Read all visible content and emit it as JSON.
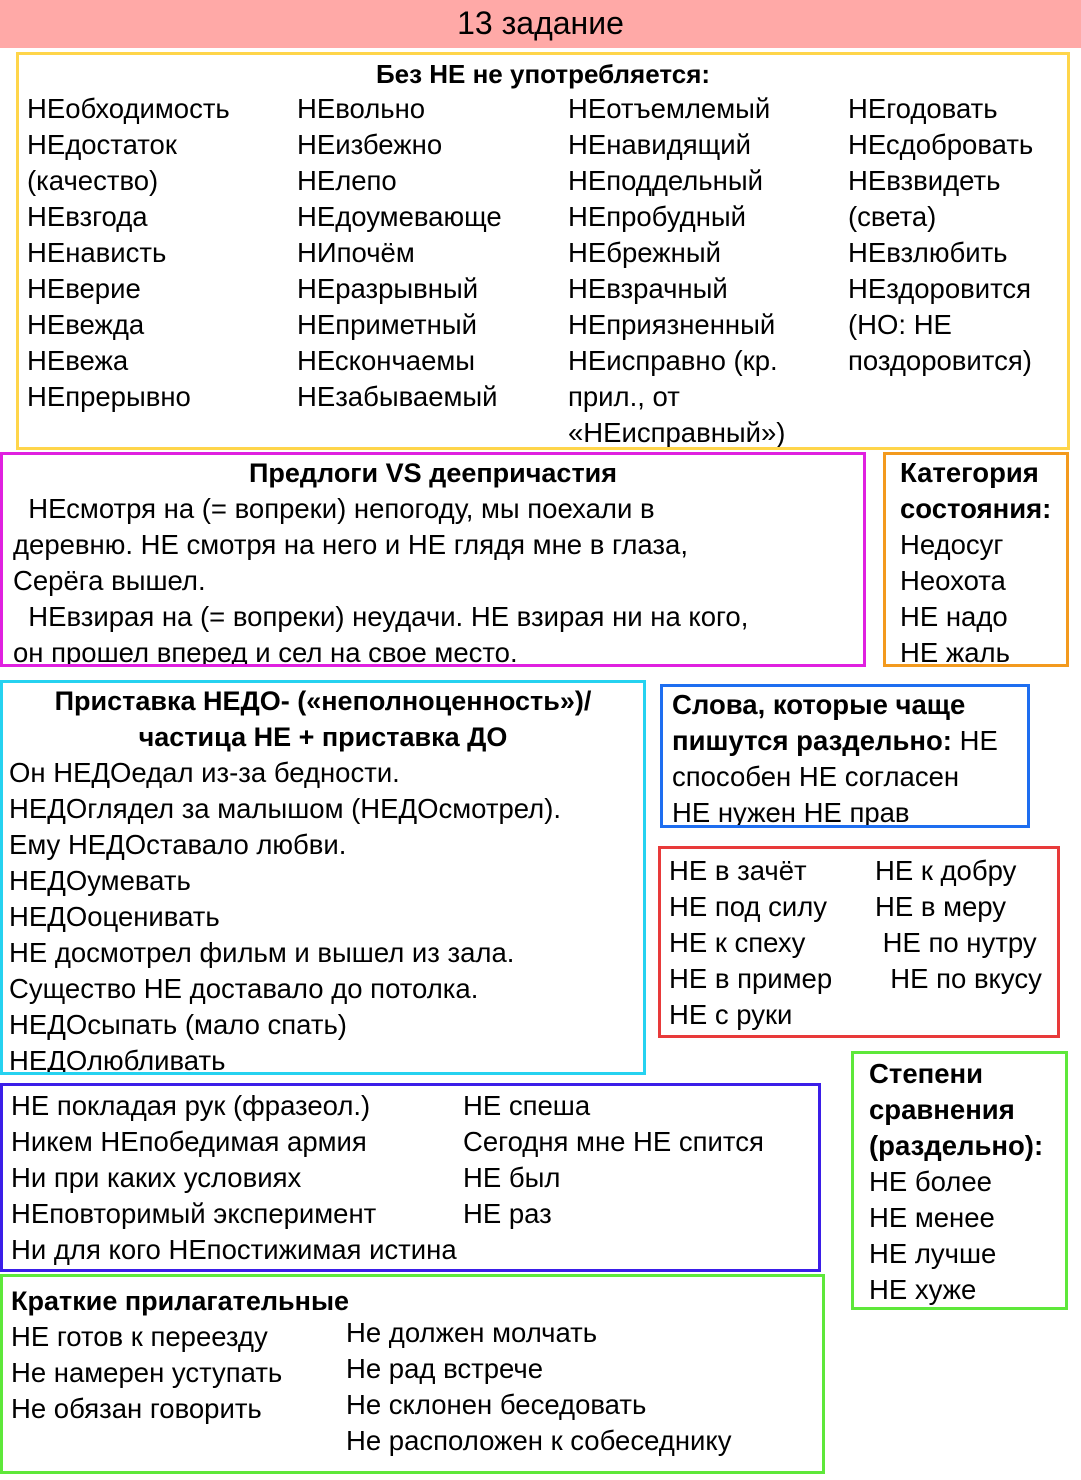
{
  "header": {
    "title": "13 задание",
    "bg": "#ffa9a7"
  },
  "box1": {
    "title": "Без НЕ не употребляется:",
    "col1": [
      "НЕобходимость",
      "НЕдостаток",
      "(качество)",
      "НЕвзгода",
      "НЕнависть",
      "НЕверие",
      "НЕвежда",
      "НЕвежа",
      "НЕпрерывно"
    ],
    "col2": [
      "НЕвольно",
      "НЕизбежно",
      "НЕлепо",
      "НЕдоумевающе",
      "НИпочём",
      "НЕразрывный",
      "НЕприметный",
      "НЕскончаемы",
      "НЕзабываемый"
    ],
    "col3": [
      "НЕотъемлемый",
      "НЕнавидящий",
      "НЕподдельный",
      "НЕпробудный",
      "НЕбрежный",
      "НЕвзрачный",
      "НЕприязненный",
      "НЕисправно (кр.",
      "прил., от",
      "«НЕисправный»)"
    ],
    "col4": [
      "НЕгодовать",
      "НЕсдобровать",
      "НЕвзвидеть",
      "(света)",
      "НЕвзлюбить",
      "НЕздоровится",
      "(НО: НЕ",
      "поздоровится)"
    ]
  },
  "box2": {
    "title": "Предлоги VS деепричастия",
    "lines": [
      "  НЕсмотря на (= вопреки) непогоду, мы поехали в",
      "деревню. НЕ смотря на него и НЕ глядя мне в глаза,",
      "Серёга вышел.",
      "  НЕвзирая на (= вопреки) неудачи. НЕ взирая ни на кого,",
      "он прошел вперед и сел на свое место."
    ]
  },
  "box3": {
    "title": [
      "Категория",
      "состояния:"
    ],
    "items": [
      "Недосуг",
      "Неохота",
      "НЕ надо",
      "НЕ жаль"
    ]
  },
  "box4": {
    "title": [
      "Приставка НЕДО- («неполноценность»)/",
      "частица НЕ + приставка ДО"
    ],
    "lines": [
      "Он НЕДОедал из-за бедности.",
      "НЕДОглядел за малышом (НЕДОсмотрел).",
      "Ему НЕДОставало любви.",
      "НЕДОумевать",
      "НЕДОоценивать",
      "НЕ досмотрел фильм и вышел из зала.",
      "Существо НЕ доставало до потолка.",
      "НЕДОсыпать (мало спать)",
      "НЕДОлюбливать"
    ]
  },
  "box5": {
    "title_line1": "Слова, которые чаще",
    "title_line2": "пишутся раздельно:",
    "line2_tail": " НЕ",
    "lines": [
      "способен НЕ согласен",
      "НЕ нужен НЕ прав"
    ]
  },
  "box6": {
    "col1": [
      "НЕ в зачёт",
      "НЕ под силу",
      "НЕ к спеху",
      "НЕ в пример",
      "НЕ с руки"
    ],
    "col2": [
      "НЕ к добру",
      "НЕ в меру",
      " НЕ по нутру",
      "  НЕ по вкусу"
    ]
  },
  "box7": {
    "col1": [
      "НЕ покладая рук (фразеол.)",
      "Никем НЕпобедимая армия",
      "Ни при каких условиях",
      "НЕповторимый эксперимент",
      "Ни для кого НЕпостижимая истина"
    ],
    "col2": [
      "НЕ спеша",
      "Сегодня мне НЕ спится",
      "НЕ был",
      "НЕ раз"
    ]
  },
  "box8": {
    "title": [
      "Степени",
      "сравнения",
      "(раздельно):"
    ],
    "items": [
      "НЕ более",
      "НЕ менее",
      "НЕ лучше",
      "НЕ хуже"
    ]
  },
  "box9": {
    "title": "Краткие прилагательные",
    "col1": [
      "НЕ готов к переезду",
      "Не намерен уступать",
      "Не обязан говорить"
    ],
    "col2": [
      "Не должен молчать",
      "Не рад встрече",
      "Не склонен беседовать",
      "Не расположен к собеседнику"
    ]
  }
}
